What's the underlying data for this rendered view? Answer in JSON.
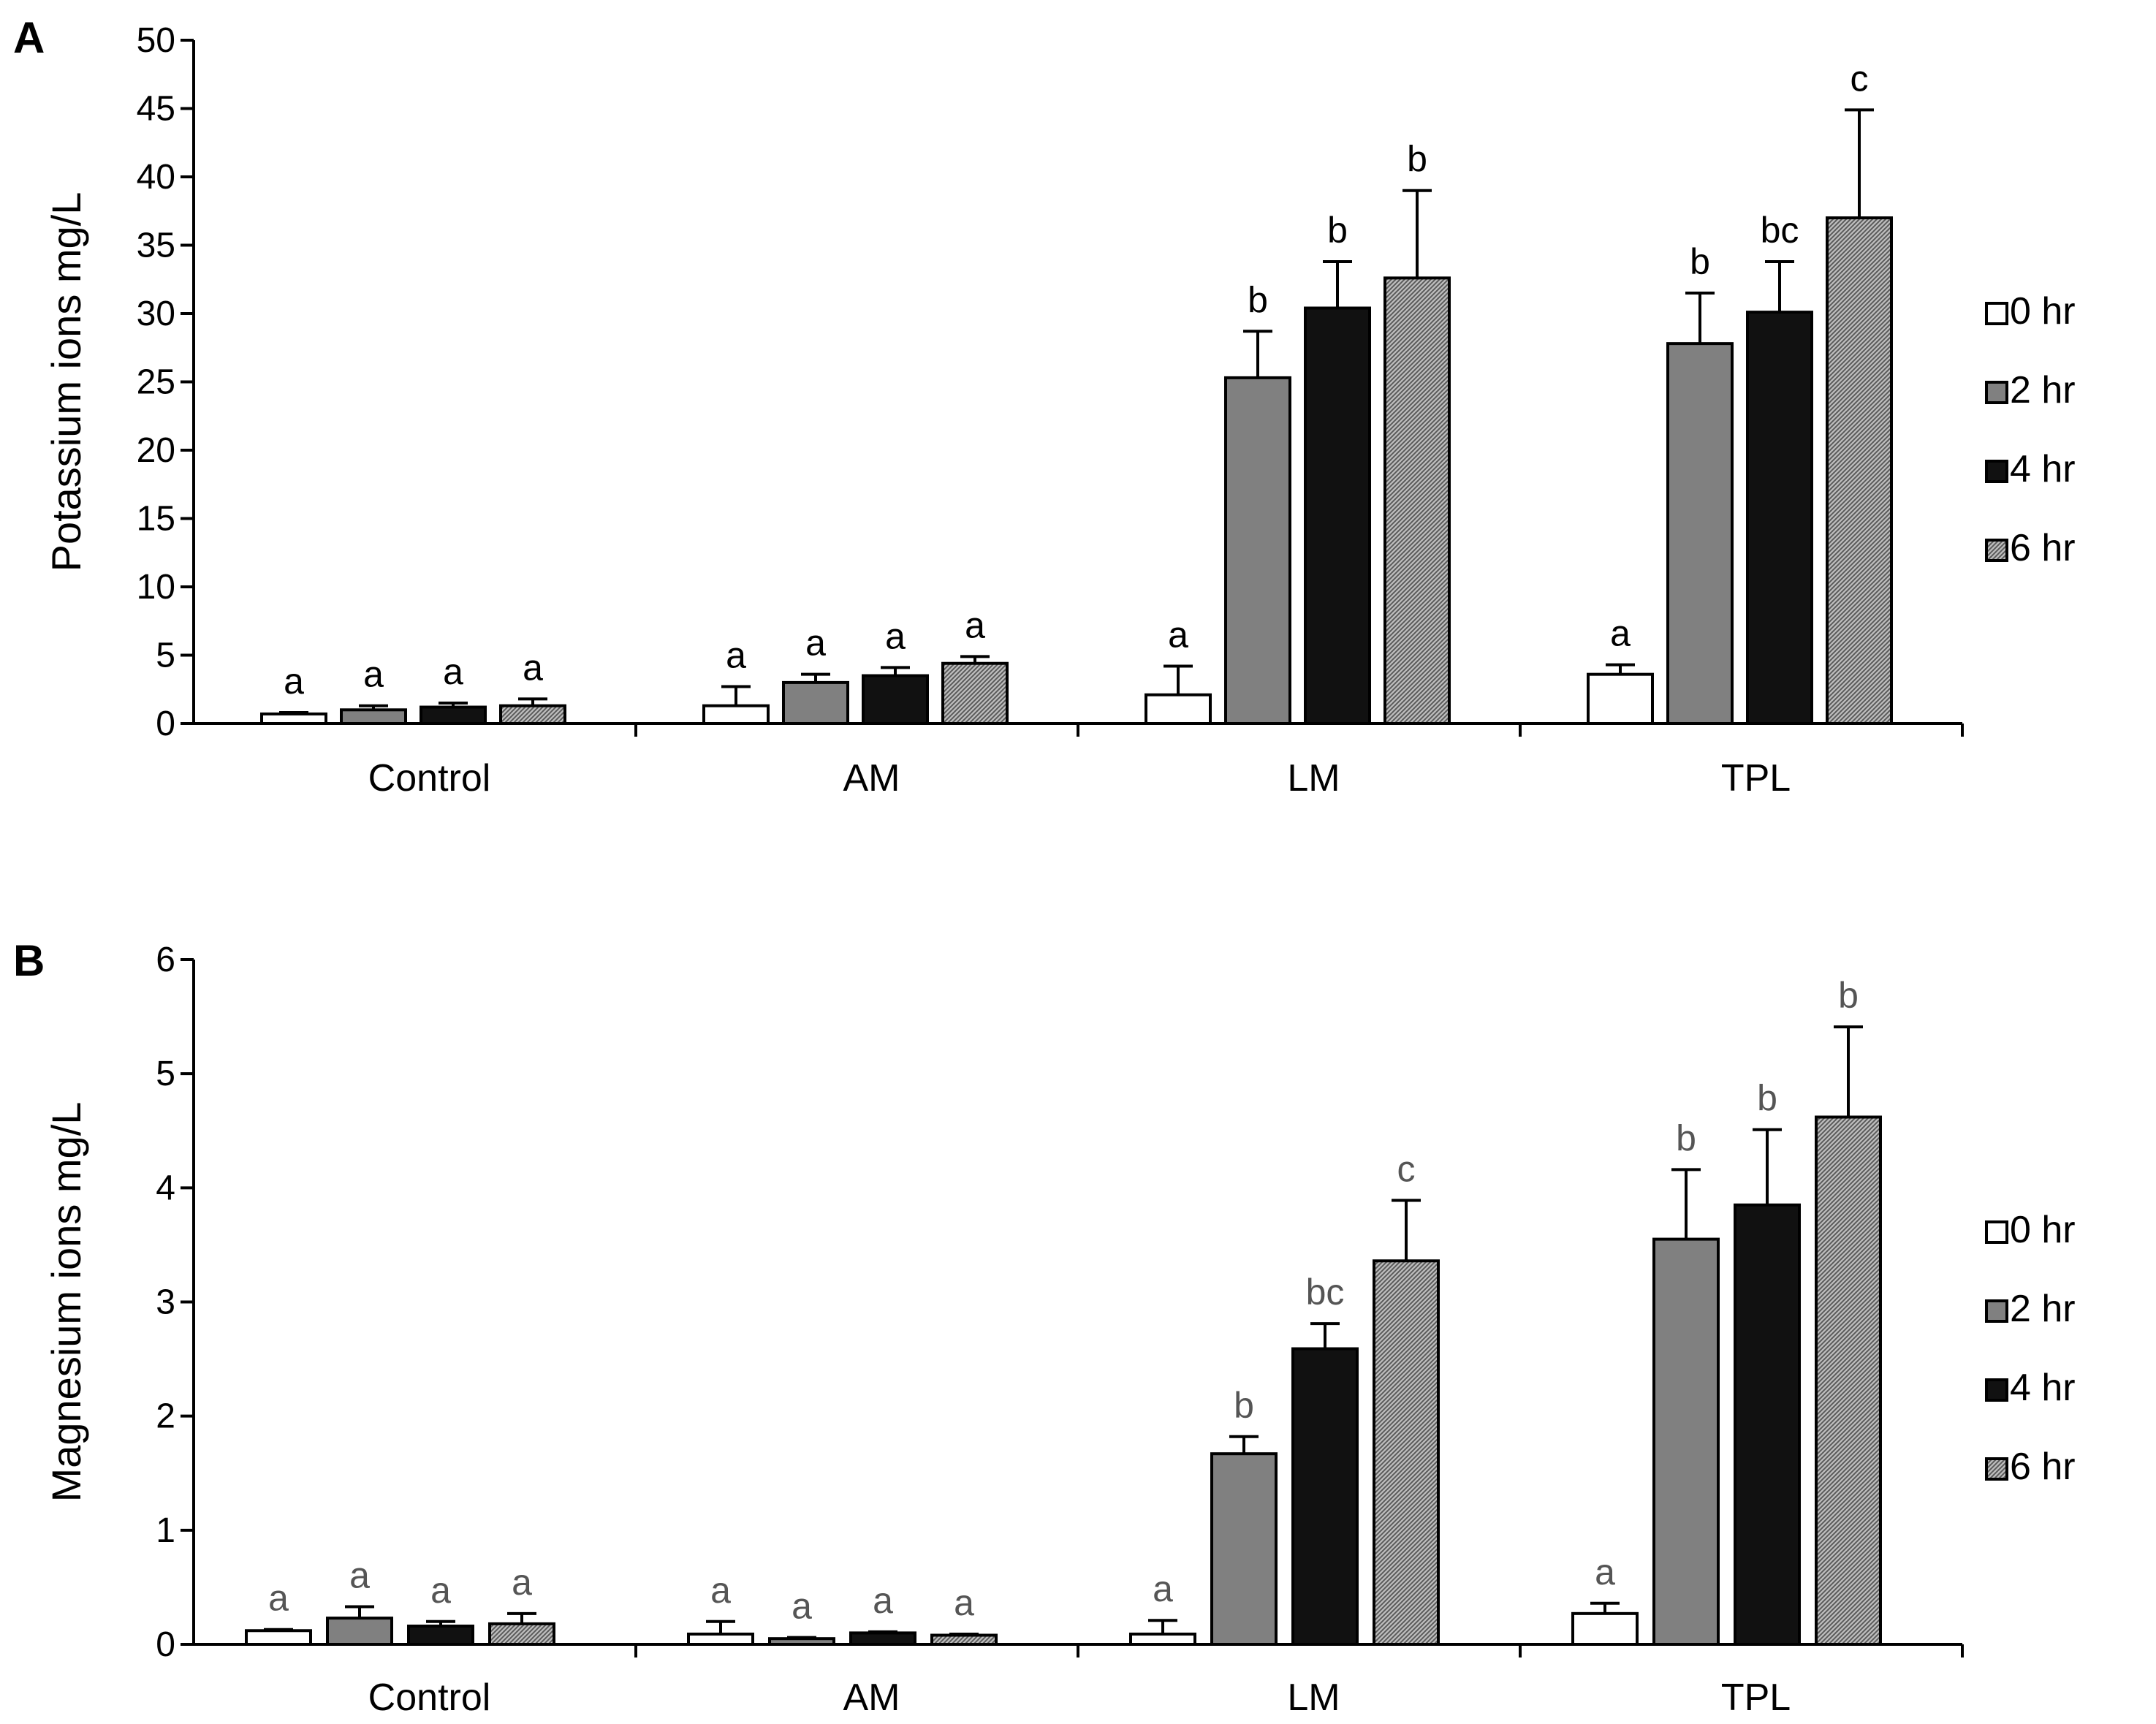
{
  "chart_data": [
    {
      "type": "bar",
      "panel_label": "A",
      "ylabel": "Potassium ions  mg/L",
      "xlabel": "",
      "ylim": [
        0,
        50
      ],
      "yticks": [
        0,
        5,
        10,
        15,
        20,
        25,
        30,
        35,
        40,
        45,
        50
      ],
      "categories": [
        "Control",
        "AM",
        "LM",
        "TPL"
      ],
      "series": [
        {
          "name": "0 hr",
          "values": [
            0.7,
            1.3,
            2.1,
            3.6
          ],
          "errors": [
            0.1,
            1.4,
            2.1,
            0.7
          ],
          "letters": [
            "a",
            "a",
            "a",
            "a"
          ]
        },
        {
          "name": "2 hr",
          "values": [
            1.0,
            3.0,
            25.3,
            27.8
          ],
          "errors": [
            0.3,
            0.6,
            3.4,
            3.7
          ],
          "letters": [
            "a",
            "a",
            "b",
            "b"
          ]
        },
        {
          "name": "4 hr",
          "values": [
            1.2,
            3.5,
            30.4,
            30.1
          ],
          "errors": [
            0.3,
            0.6,
            3.4,
            3.7
          ],
          "letters": [
            "a",
            "a",
            "b",
            "bc"
          ]
        },
        {
          "name": "6 hr",
          "values": [
            1.3,
            4.4,
            32.6,
            37.0
          ],
          "errors": [
            0.5,
            0.5,
            6.4,
            7.9
          ],
          "letters": [
            "a",
            "a",
            "b",
            "c"
          ]
        }
      ],
      "legend_position": "right"
    },
    {
      "type": "bar",
      "panel_label": "B",
      "ylabel": "Magnesium ions  mg/L",
      "xlabel": "",
      "ylim": [
        0,
        6
      ],
      "yticks": [
        0,
        1,
        2,
        3,
        4,
        5,
        6
      ],
      "categories": [
        "Control",
        "AM",
        "LM",
        "TPL"
      ],
      "series": [
        {
          "name": "0 hr",
          "values": [
            0.12,
            0.09,
            0.09,
            0.27
          ],
          "errors": [
            0.01,
            0.11,
            0.12,
            0.09
          ],
          "letters": [
            "a",
            "a",
            "a",
            "a"
          ]
        },
        {
          "name": "2 hr",
          "values": [
            0.23,
            0.05,
            1.67,
            3.55
          ],
          "errors": [
            0.1,
            0.01,
            0.15,
            0.61
          ],
          "letters": [
            "a",
            "a",
            "b",
            "b"
          ]
        },
        {
          "name": "4 hr",
          "values": [
            0.16,
            0.1,
            2.59,
            3.85
          ],
          "errors": [
            0.04,
            0.01,
            0.22,
            0.66
          ],
          "letters": [
            "a",
            "a",
            "bc",
            "b"
          ]
        },
        {
          "name": "6 hr",
          "values": [
            0.18,
            0.08,
            3.36,
            4.62
          ],
          "errors": [
            0.09,
            0.01,
            0.53,
            0.79
          ],
          "letters": [
            "a",
            "a",
            "c",
            "b"
          ]
        }
      ],
      "legend_position": "right"
    }
  ],
  "colors": {
    "0 hr": "#ffffff",
    "2 hr": "#808080",
    "4 hr": "#111111",
    "6 hr": "#9a9a9a",
    "axis": "#000000",
    "letters_A": "#000000",
    "letters_B": "#555555"
  }
}
